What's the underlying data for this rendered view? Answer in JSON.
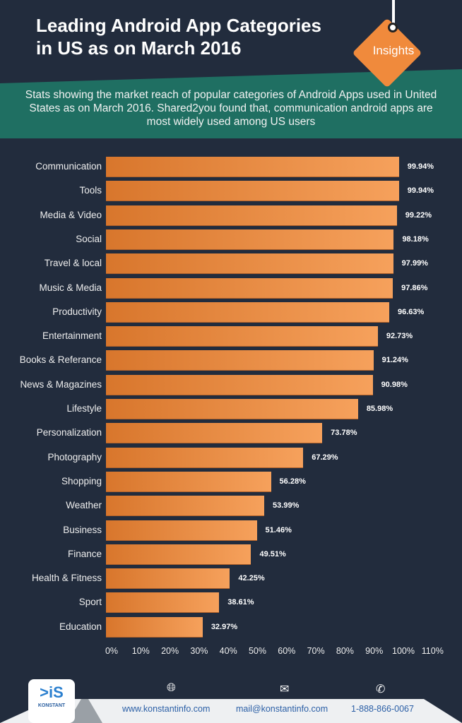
{
  "header": {
    "title_line1": "Leading Android App Categories",
    "title_line2": "in US as on March 2016",
    "badge": "Insights",
    "subtitle": "Stats showing the market reach of popular categories of Android Apps used in United States as on March 2016.  Shared2you found that, communication android apps are most widely used among US users"
  },
  "colors": {
    "background": "#222c3d",
    "band": "#1f6f62",
    "bar_start": "#d8762c",
    "bar_end": "#f6a15c"
  },
  "chart_data": {
    "type": "bar",
    "orientation": "horizontal",
    "categories": [
      "Communication",
      "Tools",
      "Media & Video",
      "Social",
      "Travel & local",
      "Music & Media",
      "Productivity",
      "Entertainment",
      "Books & Referance",
      "News & Magazines",
      "Lifestyle",
      "Personalization",
      "Photography",
      "Shopping",
      "Weather",
      "Business",
      "Finance",
      "Health & Fitness",
      "Sport",
      "Education"
    ],
    "values": [
      99.94,
      99.94,
      99.22,
      98.18,
      97.99,
      97.86,
      96.63,
      92.73,
      91.24,
      90.98,
      85.98,
      73.78,
      67.29,
      56.28,
      53.99,
      51.46,
      49.51,
      42.25,
      38.61,
      32.97
    ],
    "value_labels": [
      "99.94%",
      "99.94%",
      "99.22%",
      "98.18%",
      "97.99%",
      "97.86%",
      "96.63%",
      "92.73%",
      "91.24%",
      "90.98%",
      "85.98%",
      "73.78%",
      "67.29%",
      "56.28%",
      "53.99%",
      "51.46%",
      "49.51%",
      "42.25%",
      "38.61%",
      "32.97%"
    ],
    "xlim": [
      0,
      110
    ],
    "x_ticks": [
      "0%",
      "10%",
      "20%",
      "30%",
      "40%",
      "50%",
      "60%",
      "70%",
      "80%",
      "90%",
      "100%",
      "110%"
    ],
    "grid": false
  },
  "footer": {
    "logo": "KONSTANT",
    "website": "www.konstantinfo.com",
    "email": "mail@konstantinfo.com",
    "phone": "1-888-866-0067",
    "icons": [
      "globe-icon",
      "envelope-icon",
      "phone-icon"
    ]
  }
}
